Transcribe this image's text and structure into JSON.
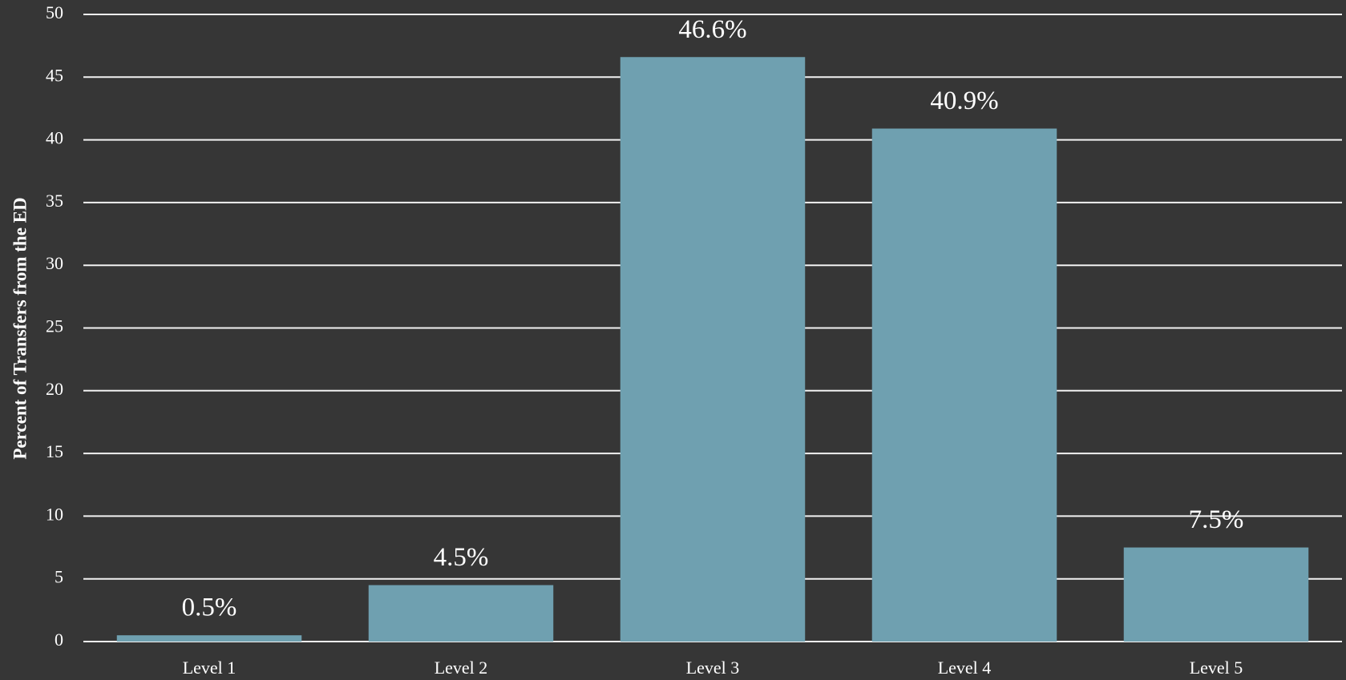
{
  "chart_data": {
    "type": "bar",
    "y_axis_label": "Percent of Transfers from the ED",
    "categories": [
      "Level 1",
      "Level 2",
      "Level 3",
      "Level 4",
      "Level 5"
    ],
    "values": [
      0.5,
      4.5,
      46.6,
      40.9,
      7.5
    ],
    "value_labels": [
      "0.5%",
      "4.5%",
      "46.6%",
      "40.9%",
      "7.5%"
    ],
    "color": "#6fa0b0",
    "ylim": [
      0,
      50
    ],
    "yticks": [
      0,
      5,
      10,
      15,
      20,
      25,
      30,
      35,
      40,
      45,
      50
    ],
    "grid": true
  }
}
